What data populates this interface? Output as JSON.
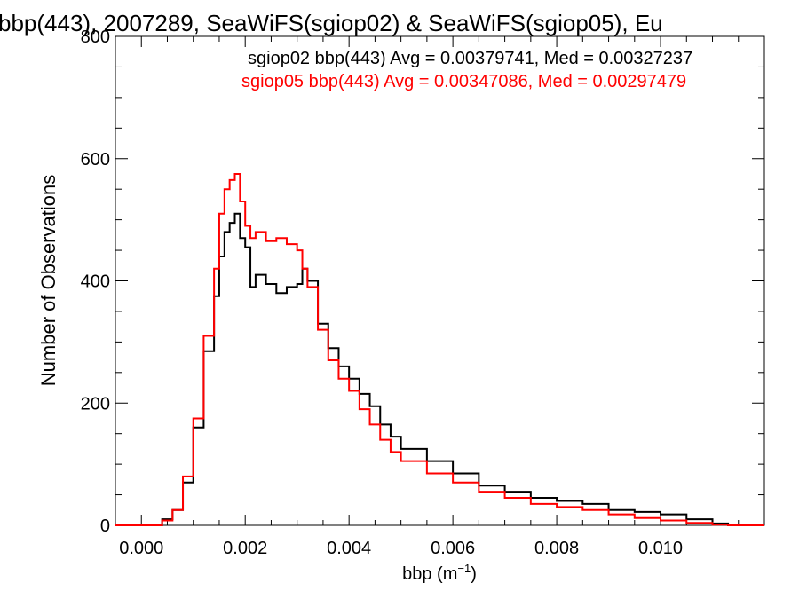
{
  "chart_data": {
    "type": "line",
    "title": "bbp(443), 2007289, SeaWiFS(sgiop02) & SeaWiFS(sgiop05), Eu",
    "xlabel": "bbp (m",
    "xlabel_sup": "−1",
    "xlabel_close": ")",
    "ylabel": "Number of Observations",
    "xlim": [
      -0.0005,
      0.012
    ],
    "ylim": [
      0,
      800
    ],
    "x_ticks": [
      0.0,
      0.002,
      0.004,
      0.006,
      0.008,
      0.01
    ],
    "x_tick_labels": [
      "0.000",
      "0.002",
      "0.004",
      "0.006",
      "0.008",
      "0.010"
    ],
    "y_ticks": [
      0,
      200,
      400,
      600,
      800
    ],
    "y_tick_labels": [
      "0",
      "200",
      "400",
      "600",
      "800"
    ],
    "step": "histogram",
    "grid": false,
    "legend_position": "top-right",
    "series": [
      {
        "name": "sgiop02 bbp(443) Avg = 0.00379741, Med = 0.00327237",
        "color": "#000000",
        "x": [
          0.0002,
          0.0004,
          0.0006,
          0.0008,
          0.001,
          0.0012,
          0.0014,
          0.0015,
          0.0016,
          0.0017,
          0.0018,
          0.0019,
          0.002,
          0.0021,
          0.0022,
          0.0024,
          0.0026,
          0.0028,
          0.003,
          0.0031,
          0.0032,
          0.0034,
          0.0036,
          0.0038,
          0.004,
          0.0042,
          0.0044,
          0.0046,
          0.0048,
          0.005,
          0.0055,
          0.006,
          0.0065,
          0.007,
          0.0075,
          0.008,
          0.0085,
          0.009,
          0.0095,
          0.01,
          0.0105,
          0.011,
          0.0113
        ],
        "y": [
          0,
          10,
          25,
          70,
          160,
          285,
          375,
          440,
          480,
          495,
          510,
          470,
          455,
          390,
          410,
          395,
          380,
          390,
          395,
          420,
          400,
          330,
          290,
          260,
          240,
          215,
          195,
          165,
          145,
          125,
          105,
          85,
          65,
          55,
          45,
          40,
          35,
          25,
          22,
          18,
          10,
          3,
          0
        ]
      },
      {
        "name": "sgiop05 bbp(443) Avg = 0.00347086, Med = 0.00297479",
        "color": "#ff0000",
        "x": [
          0.0002,
          0.0004,
          0.0006,
          0.0008,
          0.001,
          0.0012,
          0.0014,
          0.0015,
          0.0016,
          0.0017,
          0.0018,
          0.0019,
          0.002,
          0.0021,
          0.0022,
          0.0024,
          0.0026,
          0.0028,
          0.003,
          0.0031,
          0.0032,
          0.0034,
          0.0036,
          0.0038,
          0.004,
          0.0042,
          0.0044,
          0.0046,
          0.0048,
          0.005,
          0.0055,
          0.006,
          0.0065,
          0.007,
          0.0075,
          0.008,
          0.0085,
          0.009,
          0.0095,
          0.01,
          0.0105,
          0.011,
          0.0113
        ],
        "y": [
          0,
          8,
          25,
          80,
          175,
          310,
          420,
          510,
          550,
          565,
          575,
          530,
          490,
          470,
          480,
          465,
          470,
          460,
          450,
          420,
          390,
          320,
          270,
          240,
          220,
          190,
          165,
          140,
          120,
          105,
          85,
          70,
          55,
          45,
          35,
          30,
          25,
          18,
          12,
          8,
          4,
          1,
          0
        ]
      }
    ]
  }
}
